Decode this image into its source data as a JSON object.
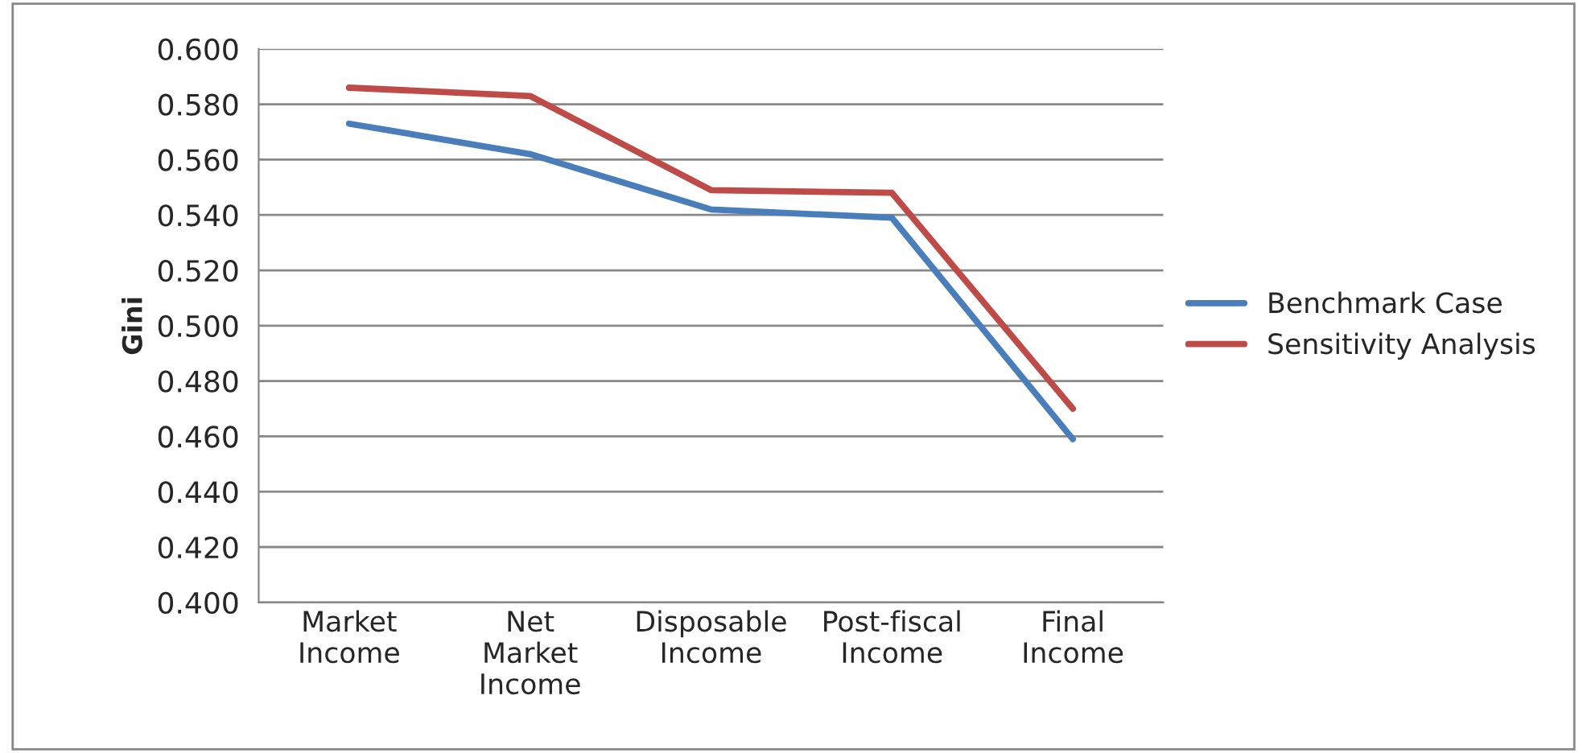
{
  "chart_data": {
    "type": "line",
    "ylabel": "Gini",
    "categories": [
      "Market\nIncome",
      "Net\nMarket\nIncome",
      "Disposable\nIncome",
      "Post-fiscal\nIncome",
      "Final\nIncome"
    ],
    "series": [
      {
        "name": "Benchmark Case",
        "color": "#4a7ebb",
        "values": [
          0.573,
          0.562,
          0.542,
          0.539,
          0.459
        ]
      },
      {
        "name": "Sensitivity Analysis",
        "color": "#be4b48",
        "values": [
          0.586,
          0.583,
          0.549,
          0.548,
          0.47
        ]
      }
    ],
    "ylim": [
      0.4,
      0.6
    ],
    "yticks": [
      {
        "value": 0.4,
        "label": "0.400"
      },
      {
        "value": 0.42,
        "label": "0.420"
      },
      {
        "value": 0.44,
        "label": "0.440"
      },
      {
        "value": 0.46,
        "label": "0.460"
      },
      {
        "value": 0.48,
        "label": "0.480"
      },
      {
        "value": 0.5,
        "label": "0.500"
      },
      {
        "value": 0.52,
        "label": "0.520"
      },
      {
        "value": 0.54,
        "label": "0.540"
      },
      {
        "value": 0.56,
        "label": "0.560"
      },
      {
        "value": 0.58,
        "label": "0.580"
      },
      {
        "value": 0.6,
        "label": "0.600"
      }
    ],
    "grid": "y",
    "legend": "right",
    "marker": "none",
    "line_style": "solid"
  }
}
